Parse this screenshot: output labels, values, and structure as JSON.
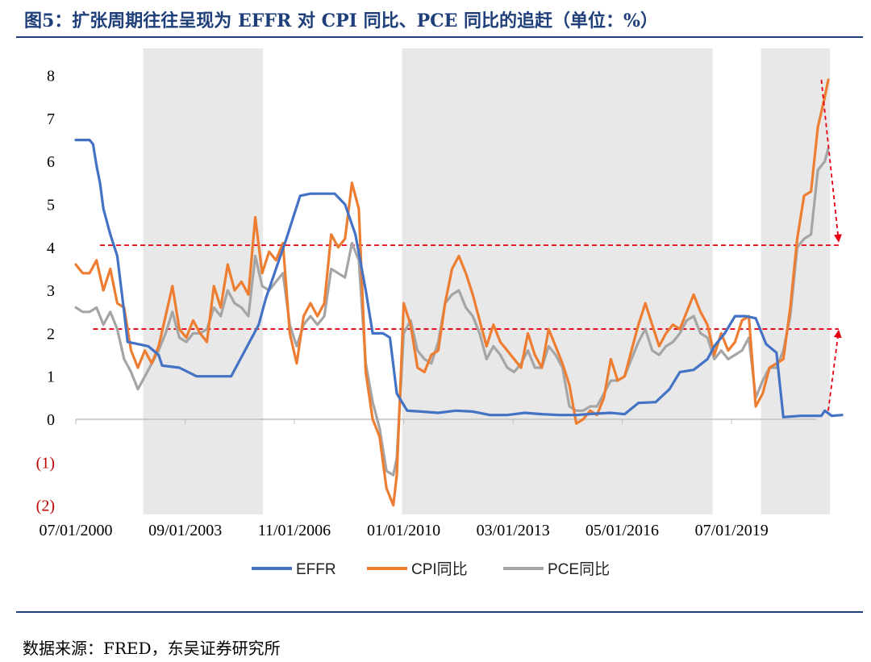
{
  "title": "图5：扩张周期往往呈现为 EFFR 对 CPI 同比、PCE 同比的追赶（单位：%）",
  "source": "数据来源：FRED，东吴证券研究所",
  "colors": {
    "effr": "#4472c4",
    "cpi": "#ed7d31",
    "pce": "#a5a5a5",
    "shade": "#e8e8e8",
    "dash": "#e60012",
    "negative_tick": "#c00000",
    "title": "#1f3f7a"
  },
  "chart_data": {
    "type": "line",
    "title": "扩张周期往往呈现为 EFFR 对 CPI 同比、PCE 同比的追赶",
    "unit": "%",
    "xlabel": "",
    "ylabel": "",
    "ylim": [
      -2,
      8
    ],
    "y_ticks": [
      -2,
      -1,
      0,
      1,
      2,
      3,
      4,
      5,
      6,
      7,
      8
    ],
    "y_tick_labels": [
      "(2)",
      "(1)",
      "0",
      "1",
      "2",
      "3",
      "4",
      "5",
      "6",
      "7",
      "8"
    ],
    "x_range": [
      2000.5,
      2021.95
    ],
    "x_ticks": [
      2000.5,
      2003.67,
      2006.83,
      2010.0,
      2013.17,
      2016.33,
      2019.5
    ],
    "x_tick_labels": [
      "07/01/2000",
      "09/01/2003",
      "11/01/2006",
      "01/01/2010",
      "03/01/2013",
      "05/01/2016",
      "07/01/2019"
    ],
    "grid": false,
    "legend": "bottom",
    "shaded_periods": [
      [
        2002.45,
        2005.92
      ],
      [
        2009.95,
        2018.95
      ],
      [
        2020.35,
        2022.35
      ]
    ],
    "reference_lines": [
      {
        "y": 4.05,
        "style": "dashed",
        "from": 2001.2,
        "to": 2022.6
      },
      {
        "y": 2.1,
        "style": "dashed",
        "from": 2001.0,
        "to": 2022.6
      }
    ],
    "arrows": [
      {
        "from": [
          2022.1,
          7.9
        ],
        "to": [
          2022.6,
          4.15
        ]
      },
      {
        "from": [
          2022.3,
          0.2
        ],
        "to": [
          2022.6,
          2.05
        ]
      }
    ],
    "series": [
      {
        "name": "EFFR",
        "points": [
          [
            2000.5,
            6.5
          ],
          [
            2000.7,
            6.5
          ],
          [
            2000.9,
            6.5
          ],
          [
            2001.0,
            6.4
          ],
          [
            2001.1,
            5.9
          ],
          [
            2001.2,
            5.5
          ],
          [
            2001.3,
            4.9
          ],
          [
            2001.5,
            4.3
          ],
          [
            2001.7,
            3.8
          ],
          [
            2001.9,
            2.5
          ],
          [
            2002.0,
            1.8
          ],
          [
            2002.3,
            1.75
          ],
          [
            2002.6,
            1.7
          ],
          [
            2002.9,
            1.5
          ],
          [
            2003.0,
            1.25
          ],
          [
            2003.5,
            1.2
          ],
          [
            2004.0,
            1.0
          ],
          [
            2004.3,
            1.0
          ],
          [
            2004.6,
            1.0
          ],
          [
            2005.0,
            1.0
          ],
          [
            2005.4,
            1.6
          ],
          [
            2005.8,
            2.2
          ],
          [
            2006.0,
            2.8
          ],
          [
            2006.3,
            3.5
          ],
          [
            2006.6,
            4.2
          ],
          [
            2006.8,
            4.7
          ],
          [
            2007.0,
            5.2
          ],
          [
            2007.3,
            5.25
          ],
          [
            2007.6,
            5.25
          ],
          [
            2008.0,
            5.25
          ],
          [
            2008.3,
            5.0
          ],
          [
            2008.6,
            4.3
          ],
          [
            2008.9,
            3.0
          ],
          [
            2009.1,
            2.0
          ],
          [
            2009.4,
            2.0
          ],
          [
            2009.6,
            1.9
          ],
          [
            2009.8,
            0.6
          ],
          [
            2010.1,
            0.2
          ],
          [
            2010.5,
            0.18
          ],
          [
            2011.0,
            0.15
          ],
          [
            2011.5,
            0.2
          ],
          [
            2012.0,
            0.18
          ],
          [
            2012.5,
            0.1
          ],
          [
            2013.0,
            0.1
          ],
          [
            2013.5,
            0.15
          ],
          [
            2014.0,
            0.12
          ],
          [
            2014.5,
            0.1
          ],
          [
            2015.0,
            0.1
          ],
          [
            2015.5,
            0.13
          ],
          [
            2016.0,
            0.15
          ],
          [
            2016.4,
            0.12
          ],
          [
            2016.8,
            0.38
          ],
          [
            2017.3,
            0.4
          ],
          [
            2017.7,
            0.7
          ],
          [
            2018.0,
            1.1
          ],
          [
            2018.4,
            1.15
          ],
          [
            2018.8,
            1.4
          ],
          [
            2019.0,
            1.7
          ],
          [
            2019.3,
            2.0
          ],
          [
            2019.6,
            2.4
          ],
          [
            2019.9,
            2.4
          ],
          [
            2020.2,
            2.35
          ],
          [
            2020.5,
            1.75
          ],
          [
            2020.8,
            1.55
          ],
          [
            2021.0,
            0.05
          ],
          [
            2021.5,
            0.08
          ],
          [
            2022.0,
            0.08
          ],
          [
            2022.4,
            0.08
          ],
          [
            2022.7,
            0.1
          ],
          [
            2022.1,
            0.08
          ],
          [
            2022.2,
            0.2
          ]
        ]
      },
      {
        "name": "CPI同比",
        "points": [
          [
            2000.5,
            3.6
          ],
          [
            2000.7,
            3.4
          ],
          [
            2000.9,
            3.4
          ],
          [
            2001.1,
            3.7
          ],
          [
            2001.3,
            3.0
          ],
          [
            2001.5,
            3.5
          ],
          [
            2001.7,
            2.7
          ],
          [
            2001.9,
            2.6
          ],
          [
            2002.1,
            1.6
          ],
          [
            2002.3,
            1.2
          ],
          [
            2002.5,
            1.6
          ],
          [
            2002.7,
            1.3
          ],
          [
            2002.9,
            1.7
          ],
          [
            2003.1,
            2.4
          ],
          [
            2003.3,
            3.1
          ],
          [
            2003.5,
            2.1
          ],
          [
            2003.7,
            1.9
          ],
          [
            2003.9,
            2.3
          ],
          [
            2004.1,
            2.0
          ],
          [
            2004.3,
            1.8
          ],
          [
            2004.5,
            3.1
          ],
          [
            2004.7,
            2.6
          ],
          [
            2004.9,
            3.6
          ],
          [
            2005.1,
            3.0
          ],
          [
            2005.3,
            3.2
          ],
          [
            2005.5,
            2.9
          ],
          [
            2005.7,
            4.7
          ],
          [
            2005.9,
            3.4
          ],
          [
            2006.1,
            3.9
          ],
          [
            2006.3,
            3.7
          ],
          [
            2006.5,
            4.1
          ],
          [
            2006.7,
            2.0
          ],
          [
            2006.9,
            1.3
          ],
          [
            2007.1,
            2.4
          ],
          [
            2007.3,
            2.7
          ],
          [
            2007.5,
            2.4
          ],
          [
            2007.7,
            2.7
          ],
          [
            2007.9,
            4.3
          ],
          [
            2008.1,
            4.0
          ],
          [
            2008.3,
            4.2
          ],
          [
            2008.5,
            5.5
          ],
          [
            2008.7,
            4.9
          ],
          [
            2008.9,
            1.1
          ],
          [
            2009.1,
            0.0
          ],
          [
            2009.3,
            -0.4
          ],
          [
            2009.5,
            -1.6
          ],
          [
            2009.7,
            -2.0
          ],
          [
            2009.8,
            -1.3
          ],
          [
            2010.0,
            2.7
          ],
          [
            2010.2,
            2.2
          ],
          [
            2010.4,
            1.2
          ],
          [
            2010.6,
            1.1
          ],
          [
            2010.8,
            1.5
          ],
          [
            2011.0,
            1.6
          ],
          [
            2011.2,
            2.7
          ],
          [
            2011.4,
            3.5
          ],
          [
            2011.6,
            3.8
          ],
          [
            2011.8,
            3.4
          ],
          [
            2012.0,
            2.9
          ],
          [
            2012.2,
            2.3
          ],
          [
            2012.4,
            1.7
          ],
          [
            2012.6,
            2.2
          ],
          [
            2012.8,
            1.8
          ],
          [
            2013.0,
            1.6
          ],
          [
            2013.2,
            1.4
          ],
          [
            2013.4,
            1.2
          ],
          [
            2013.6,
            2.0
          ],
          [
            2013.8,
            1.5
          ],
          [
            2014.0,
            1.2
          ],
          [
            2014.2,
            2.1
          ],
          [
            2014.4,
            1.7
          ],
          [
            2014.6,
            1.3
          ],
          [
            2014.8,
            0.8
          ],
          [
            2015.0,
            -0.1
          ],
          [
            2015.2,
            0.0
          ],
          [
            2015.4,
            0.2
          ],
          [
            2015.6,
            0.1
          ],
          [
            2015.8,
            0.5
          ],
          [
            2016.0,
            1.4
          ],
          [
            2016.2,
            0.9
          ],
          [
            2016.4,
            1.0
          ],
          [
            2016.6,
            1.6
          ],
          [
            2016.8,
            2.2
          ],
          [
            2017.0,
            2.7
          ],
          [
            2017.2,
            2.2
          ],
          [
            2017.4,
            1.7
          ],
          [
            2017.6,
            2.0
          ],
          [
            2017.8,
            2.2
          ],
          [
            2018.0,
            2.1
          ],
          [
            2018.2,
            2.5
          ],
          [
            2018.4,
            2.9
          ],
          [
            2018.6,
            2.5
          ],
          [
            2018.8,
            2.2
          ],
          [
            2019.0,
            1.5
          ],
          [
            2019.2,
            2.0
          ],
          [
            2019.4,
            1.6
          ],
          [
            2019.6,
            1.8
          ],
          [
            2019.8,
            2.3
          ],
          [
            2020.0,
            2.4
          ],
          [
            2020.2,
            0.3
          ],
          [
            2020.4,
            0.6
          ],
          [
            2020.6,
            1.2
          ],
          [
            2020.8,
            1.3
          ],
          [
            2021.0,
            1.4
          ],
          [
            2021.2,
            2.6
          ],
          [
            2021.4,
            4.2
          ],
          [
            2021.6,
            5.2
          ],
          [
            2021.8,
            5.3
          ],
          [
            2022.0,
            6.8
          ],
          [
            2022.2,
            7.5
          ],
          [
            2022.3,
            7.9
          ]
        ]
      },
      {
        "name": "PCE同比",
        "points": [
          [
            2000.5,
            2.6
          ],
          [
            2000.7,
            2.5
          ],
          [
            2000.9,
            2.5
          ],
          [
            2001.1,
            2.6
          ],
          [
            2001.3,
            2.2
          ],
          [
            2001.5,
            2.5
          ],
          [
            2001.7,
            2.1
          ],
          [
            2001.9,
            1.4
          ],
          [
            2002.1,
            1.1
          ],
          [
            2002.3,
            0.7
          ],
          [
            2002.5,
            1.0
          ],
          [
            2002.7,
            1.3
          ],
          [
            2002.9,
            1.6
          ],
          [
            2003.1,
            2.0
          ],
          [
            2003.3,
            2.5
          ],
          [
            2003.5,
            1.9
          ],
          [
            2003.7,
            1.8
          ],
          [
            2003.9,
            2.0
          ],
          [
            2004.1,
            2.0
          ],
          [
            2004.3,
            2.1
          ],
          [
            2004.5,
            2.6
          ],
          [
            2004.7,
            2.4
          ],
          [
            2004.9,
            3.0
          ],
          [
            2005.1,
            2.7
          ],
          [
            2005.3,
            2.6
          ],
          [
            2005.5,
            2.4
          ],
          [
            2005.7,
            3.8
          ],
          [
            2005.9,
            3.1
          ],
          [
            2006.1,
            3.0
          ],
          [
            2006.3,
            3.2
          ],
          [
            2006.5,
            3.4
          ],
          [
            2006.7,
            2.2
          ],
          [
            2006.9,
            1.7
          ],
          [
            2007.1,
            2.2
          ],
          [
            2007.3,
            2.4
          ],
          [
            2007.5,
            2.2
          ],
          [
            2007.7,
            2.4
          ],
          [
            2007.9,
            3.5
          ],
          [
            2008.1,
            3.4
          ],
          [
            2008.3,
            3.3
          ],
          [
            2008.5,
            4.1
          ],
          [
            2008.7,
            3.7
          ],
          [
            2008.9,
            1.3
          ],
          [
            2009.1,
            0.4
          ],
          [
            2009.3,
            -0.2
          ],
          [
            2009.5,
            -1.2
          ],
          [
            2009.7,
            -1.3
          ],
          [
            2009.8,
            -0.9
          ],
          [
            2010.0,
            2.0
          ],
          [
            2010.2,
            2.3
          ],
          [
            2010.4,
            1.6
          ],
          [
            2010.6,
            1.4
          ],
          [
            2010.8,
            1.3
          ],
          [
            2011.0,
            1.8
          ],
          [
            2011.2,
            2.7
          ],
          [
            2011.4,
            2.9
          ],
          [
            2011.6,
            3.0
          ],
          [
            2011.8,
            2.6
          ],
          [
            2012.0,
            2.4
          ],
          [
            2012.2,
            2.0
          ],
          [
            2012.4,
            1.4
          ],
          [
            2012.6,
            1.7
          ],
          [
            2012.8,
            1.5
          ],
          [
            2013.0,
            1.2
          ],
          [
            2013.2,
            1.1
          ],
          [
            2013.4,
            1.3
          ],
          [
            2013.6,
            1.6
          ],
          [
            2013.8,
            1.2
          ],
          [
            2014.0,
            1.2
          ],
          [
            2014.2,
            1.7
          ],
          [
            2014.4,
            1.5
          ],
          [
            2014.6,
            1.2
          ],
          [
            2014.8,
            0.3
          ],
          [
            2015.0,
            0.2
          ],
          [
            2015.2,
            0.2
          ],
          [
            2015.4,
            0.3
          ],
          [
            2015.6,
            0.3
          ],
          [
            2015.8,
            0.6
          ],
          [
            2016.0,
            0.9
          ],
          [
            2016.2,
            0.9
          ],
          [
            2016.4,
            1.0
          ],
          [
            2016.6,
            1.4
          ],
          [
            2016.8,
            1.8
          ],
          [
            2017.0,
            2.1
          ],
          [
            2017.2,
            1.6
          ],
          [
            2017.4,
            1.5
          ],
          [
            2017.6,
            1.7
          ],
          [
            2017.8,
            1.8
          ],
          [
            2018.0,
            2.0
          ],
          [
            2018.2,
            2.3
          ],
          [
            2018.4,
            2.4
          ],
          [
            2018.6,
            2.0
          ],
          [
            2018.8,
            1.9
          ],
          [
            2019.0,
            1.4
          ],
          [
            2019.2,
            1.6
          ],
          [
            2019.4,
            1.4
          ],
          [
            2019.6,
            1.5
          ],
          [
            2019.8,
            1.6
          ],
          [
            2020.0,
            1.9
          ],
          [
            2020.2,
            0.5
          ],
          [
            2020.4,
            0.9
          ],
          [
            2020.6,
            1.2
          ],
          [
            2020.8,
            1.2
          ],
          [
            2021.0,
            1.6
          ],
          [
            2021.2,
            2.4
          ],
          [
            2021.4,
            4.0
          ],
          [
            2021.6,
            4.2
          ],
          [
            2021.8,
            4.3
          ],
          [
            2022.0,
            5.8
          ],
          [
            2022.2,
            6.0
          ],
          [
            2022.3,
            6.3
          ]
        ]
      }
    ]
  }
}
